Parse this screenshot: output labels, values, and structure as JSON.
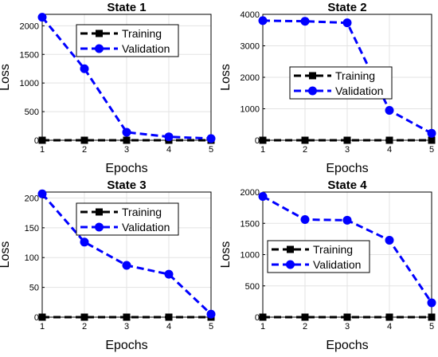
{
  "chart_data": [
    {
      "type": "line",
      "title": "State 1",
      "xlabel": "Epochs",
      "ylabel": "Loss",
      "x": [
        1,
        2,
        3,
        4,
        5
      ],
      "xlim": [
        1,
        5
      ],
      "ylim": [
        0,
        2200
      ],
      "yticks": [
        0,
        500,
        1000,
        1500,
        2000
      ],
      "grid": true,
      "legend_position": "top-center",
      "series": [
        {
          "name": "Training",
          "values": [
            0,
            0,
            0,
            0,
            0
          ],
          "color": "#000000",
          "marker": "square",
          "linestyle": "dashed"
        },
        {
          "name": "Validation",
          "values": [
            2150,
            1250,
            140,
            60,
            30
          ],
          "color": "#0000ff",
          "marker": "circle",
          "linestyle": "dashed"
        }
      ]
    },
    {
      "type": "line",
      "title": "State 2",
      "xlabel": "Epochs",
      "ylabel": "Loss",
      "x": [
        1,
        2,
        3,
        4,
        5
      ],
      "xlim": [
        1,
        5
      ],
      "ylim": [
        0,
        4000
      ],
      "yticks": [
        0,
        1000,
        2000,
        3000,
        4000
      ],
      "grid": true,
      "legend_position": "center",
      "series": [
        {
          "name": "Training",
          "values": [
            0,
            0,
            0,
            0,
            0
          ],
          "color": "#000000",
          "marker": "square",
          "linestyle": "dashed"
        },
        {
          "name": "Validation",
          "values": [
            3800,
            3780,
            3730,
            950,
            220
          ],
          "color": "#0000ff",
          "marker": "circle",
          "linestyle": "dashed"
        }
      ]
    },
    {
      "type": "line",
      "title": "State 3",
      "xlabel": "Epochs",
      "ylabel": "Loss",
      "x": [
        1,
        2,
        3,
        4,
        5
      ],
      "xlim": [
        1,
        5
      ],
      "ylim": [
        0,
        210
      ],
      "yticks": [
        0,
        50,
        100,
        150,
        200
      ],
      "grid": true,
      "legend_position": "top-center",
      "series": [
        {
          "name": "Training",
          "values": [
            0,
            0,
            0,
            0,
            0
          ],
          "color": "#000000",
          "marker": "square",
          "linestyle": "dashed"
        },
        {
          "name": "Validation",
          "values": [
            207,
            126,
            87,
            72,
            5
          ],
          "color": "#0000ff",
          "marker": "circle",
          "linestyle": "dashed"
        }
      ]
    },
    {
      "type": "line",
      "title": "State 4",
      "xlabel": "Epochs",
      "ylabel": "Loss",
      "x": [
        1,
        2,
        3,
        4,
        5
      ],
      "xlim": [
        1,
        5
      ],
      "ylim": [
        0,
        2000
      ],
      "yticks": [
        0,
        500,
        1000,
        1500,
        2000
      ],
      "grid": true,
      "legend_position": "center-left",
      "series": [
        {
          "name": "Training",
          "values": [
            0,
            0,
            0,
            0,
            0
          ],
          "color": "#000000",
          "marker": "square",
          "linestyle": "dashed"
        },
        {
          "name": "Validation",
          "values": [
            1930,
            1560,
            1550,
            1230,
            230
          ],
          "color": "#0000ff",
          "marker": "circle",
          "linestyle": "dashed"
        }
      ]
    }
  ]
}
